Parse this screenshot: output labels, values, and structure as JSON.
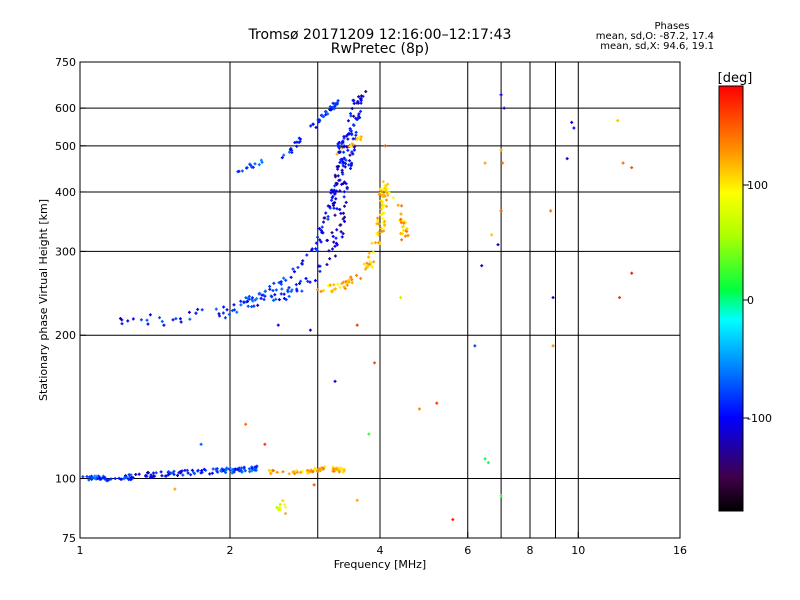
{
  "header": {
    "title_line1": "Tromsø 20171209 12:16:00–12:17:43",
    "title_line2": "RwPretec (8p)",
    "phase_title": "Phases",
    "phase_line1": "mean, sd,O: -87.2, 17.4",
    "phase_line2": "mean, sd,X:  94.6, 19.1"
  },
  "colorbar": {
    "label": "[deg]",
    "ticks": [
      "100",
      "0",
      "-100"
    ]
  },
  "chart_data": {
    "type": "scatter",
    "title": "Tromsø 20171209 12:16:00–12:17:43",
    "subtitle": "RwPretec (8p)",
    "xlabel": "Frequency [MHz]",
    "ylabel": "Stationary phase Virtual Height [km]",
    "x_scale": "log",
    "y_scale": "log",
    "xlim": [
      1,
      16
    ],
    "ylim": [
      75,
      750
    ],
    "x_ticks": [
      1,
      2,
      4,
      6,
      8,
      10,
      16
    ],
    "x_tick_labels": [
      "1",
      "2",
      "4",
      "6",
      "8",
      "10",
      "16"
    ],
    "y_ticks": [
      75,
      100,
      200,
      300,
      400,
      500,
      600,
      750
    ],
    "y_tick_labels": [
      "75",
      "100",
      "200",
      "300",
      "400",
      "500",
      "600",
      "750"
    ],
    "x_grid": [
      2,
      3,
      4,
      6,
      7,
      8,
      9,
      10
    ],
    "y_grid": [
      100,
      200,
      300,
      400,
      500,
      600
    ],
    "color_scale": {
      "label": "[deg]",
      "min": -180,
      "max": 180
    },
    "series": [
      {
        "curve": [
          [
            1.2,
            217,
            -95
          ],
          [
            1.5,
            216,
            -95
          ],
          [
            1.9,
            222,
            -90
          ],
          [
            2.2,
            233,
            -85
          ],
          [
            2.6,
            245,
            -85
          ],
          [
            3.0,
            265,
            -100
          ],
          [
            3.2,
            300,
            -110
          ],
          [
            3.3,
            340,
            -115
          ],
          [
            3.35,
            400,
            -110
          ],
          [
            3.4,
            450,
            -105
          ],
          [
            3.45,
            480,
            -100
          ],
          [
            3.5,
            520,
            -100
          ],
          [
            3.55,
            560,
            -105
          ],
          [
            3.6,
            600,
            -110
          ],
          [
            3.65,
            640,
            -110
          ]
        ],
        "spread": 0.06,
        "n": 210
      },
      {
        "curve": [
          [
            2.15,
            235,
            -80
          ],
          [
            2.6,
            262,
            -90
          ],
          [
            3.0,
            310,
            -100
          ],
          [
            3.2,
            380,
            -105
          ],
          [
            3.3,
            450,
            -110
          ],
          [
            3.35,
            530,
            -100
          ]
        ],
        "spread": 0.03,
        "n": 90
      },
      {
        "curve": [
          [
            2.0,
            440,
            -70
          ],
          [
            2.3,
            460,
            -75
          ],
          [
            2.6,
            480,
            -80
          ],
          [
            2.8,
            520,
            -80
          ],
          [
            3.0,
            560,
            -85
          ],
          [
            3.2,
            600,
            -90
          ],
          [
            3.3,
            620,
            -100
          ]
        ],
        "spread": 0.02,
        "n": 60
      },
      {
        "curve": [
          [
            3.0,
            248,
            110
          ],
          [
            3.4,
            255,
            115
          ],
          [
            3.8,
            280,
            110
          ],
          [
            4.0,
            330,
            105
          ],
          [
            4.05,
            380,
            110
          ],
          [
            4.1,
            415,
            105
          ],
          [
            4.4,
            360,
            115
          ],
          [
            4.5,
            320,
            120
          ]
        ],
        "spread": 0.04,
        "n": 130
      },
      {
        "curve": [
          [
            3.2,
            480,
            110
          ],
          [
            3.5,
            500,
            115
          ],
          [
            3.7,
            530,
            110
          ]
        ],
        "spread": 0.02,
        "n": 12
      },
      {
        "curve": [
          [
            1.0,
            100,
            -75
          ],
          [
            1.2,
            100,
            -90
          ],
          [
            1.4,
            102,
            -100
          ],
          [
            1.7,
            103,
            -95
          ],
          [
            2.0,
            104,
            -80
          ],
          [
            2.3,
            105,
            -75
          ]
        ],
        "spread": 0.025,
        "n": 150
      },
      {
        "curve": [
          [
            2.4,
            103,
            120
          ],
          [
            2.8,
            103,
            110
          ],
          [
            3.1,
            105,
            120
          ],
          [
            3.4,
            104,
            115
          ]
        ],
        "spread": 0.02,
        "n": 60
      },
      {
        "curve": [
          [
            2.5,
            86,
            80
          ],
          [
            2.55,
            90,
            85
          ],
          [
            2.6,
            84,
            90
          ]
        ],
        "spread": 0.02,
        "n": 10
      }
    ],
    "scattered_points": [
      [
        5.2,
        144,
        160
      ],
      [
        4.8,
        140,
        130
      ],
      [
        3.9,
        175,
        150
      ],
      [
        3.8,
        124,
        20
      ],
      [
        4.4,
        240,
        60
      ],
      [
        6.5,
        110,
        10
      ],
      [
        6.6,
        108,
        0
      ],
      [
        7.0,
        92,
        20
      ],
      [
        5.6,
        82,
        170
      ],
      [
        6.2,
        190,
        -80
      ],
      [
        6.4,
        280,
        -110
      ],
      [
        6.9,
        310,
        -120
      ],
      [
        7.0,
        365,
        150
      ],
      [
        7.05,
        460,
        130
      ],
      [
        6.5,
        460,
        120
      ],
      [
        6.7,
        325,
        110
      ],
      [
        7.0,
        490,
        120
      ],
      [
        7.0,
        640,
        -100
      ],
      [
        7.1,
        600,
        -110
      ],
      [
        8.8,
        365,
        140
      ],
      [
        8.9,
        190,
        130
      ],
      [
        8.9,
        240,
        -120
      ],
      [
        9.5,
        470,
        -120
      ],
      [
        9.7,
        560,
        -110
      ],
      [
        9.8,
        545,
        -100
      ],
      [
        12.0,
        565,
        110
      ],
      [
        12.3,
        460,
        140
      ],
      [
        12.8,
        450,
        150
      ],
      [
        12.8,
        270,
        170
      ],
      [
        12.1,
        240,
        160
      ],
      [
        2.15,
        130,
        140
      ],
      [
        2.35,
        118,
        160
      ],
      [
        1.75,
        118,
        -70
      ],
      [
        1.55,
        95,
        120
      ],
      [
        2.95,
        97,
        150
      ],
      [
        3.6,
        90,
        120
      ],
      [
        3.25,
        160,
        -110
      ],
      [
        4.1,
        500,
        150
      ],
      [
        3.6,
        210,
        160
      ],
      [
        2.9,
        205,
        -120
      ],
      [
        2.5,
        210,
        -110
      ]
    ]
  }
}
